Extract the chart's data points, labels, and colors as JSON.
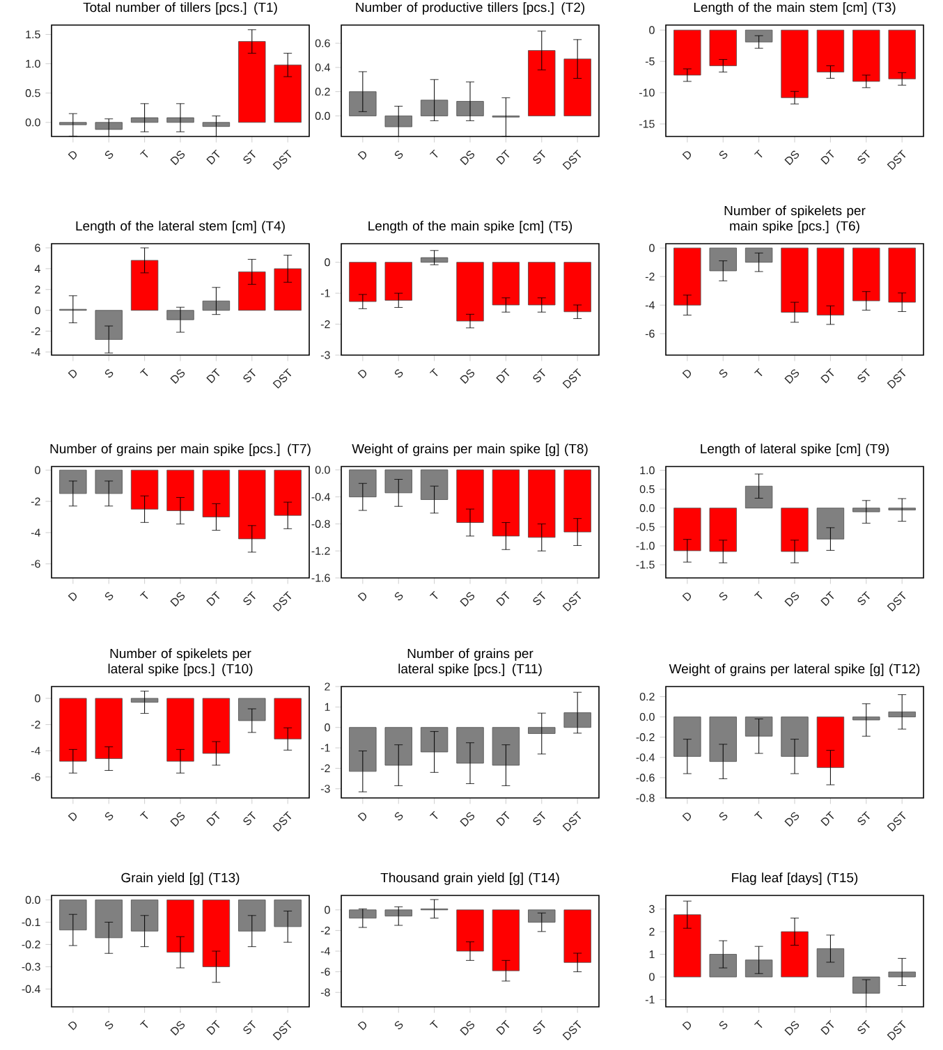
{
  "chart_data": [
    {
      "type": "bar",
      "title": "Total number of tillers [pcs.] (T1)",
      "categories": [
        "D",
        "S",
        "T",
        "DS",
        "DT",
        "ST",
        "DST"
      ],
      "values": [
        -0.04,
        -0.12,
        0.08,
        0.08,
        -0.07,
        1.38,
        0.98
      ],
      "errors": [
        0.19,
        0.18,
        0.24,
        0.24,
        0.18,
        0.2,
        0.2
      ],
      "colors": [
        "#808080",
        "#808080",
        "#808080",
        "#808080",
        "#808080",
        "#ff0000",
        "#ff0000"
      ],
      "ylim": [
        -0.24,
        1.66
      ],
      "yticks": [
        {
          "value": 0,
          "label": "0.0"
        },
        0.5,
        {
          "value": 1,
          "label": "1.0"
        },
        1.5
      ]
    },
    {
      "type": "bar",
      "title": "Number of productive tillers [pcs.] (T2)",
      "categories": [
        "D",
        "S",
        "T",
        "DS",
        "DT",
        "ST",
        "DST"
      ],
      "values": [
        0.2,
        -0.09,
        0.13,
        0.12,
        -0.01,
        0.54,
        0.47
      ],
      "errors": [
        0.165,
        0.17,
        0.17,
        0.16,
        0.16,
        0.16,
        0.16
      ],
      "colors": [
        "#808080",
        "#808080",
        "#808080",
        "#808080",
        "#808080",
        "#ff0000",
        "#ff0000"
      ],
      "ylim": [
        -0.17,
        0.75
      ],
      "yticks": [
        {
          "value": 0,
          "label": "0.0"
        },
        0.2,
        0.4,
        0.6
      ]
    },
    {
      "type": "bar",
      "title": "Length of the main stem [cm] (T3)",
      "categories": [
        "D",
        "S",
        "T",
        "DS",
        "DT",
        "ST",
        "DST"
      ],
      "values": [
        -7.2,
        -5.7,
        -1.9,
        -10.8,
        -6.7,
        -8.2,
        -7.8
      ],
      "errors": [
        1.0,
        1.0,
        1.0,
        1.0,
        1.0,
        1.0,
        1.0
      ],
      "colors": [
        "#ff0000",
        "#ff0000",
        "#808080",
        "#ff0000",
        "#ff0000",
        "#ff0000",
        "#ff0000"
      ],
      "ylim": [
        -17,
        0.8
      ],
      "yticks": [
        -15,
        -10,
        -5,
        0
      ]
    },
    {
      "type": "bar",
      "title": "Length of the lateral stem [cm] (T4)",
      "categories": [
        "D",
        "S",
        "T",
        "DS",
        "DT",
        "ST",
        "DST"
      ],
      "values": [
        0.1,
        -2.8,
        4.8,
        -0.9,
        0.9,
        3.7,
        4.0
      ],
      "errors": [
        1.3,
        1.3,
        1.2,
        1.2,
        1.3,
        1.2,
        1.3
      ],
      "colors": [
        "#808080",
        "#808080",
        "#ff0000",
        "#808080",
        "#808080",
        "#ff0000",
        "#ff0000"
      ],
      "ylim": [
        -4.3,
        6.4
      ],
      "yticks": [
        -4,
        -2,
        0,
        2,
        4,
        6
      ]
    },
    {
      "type": "bar",
      "title": "Length of the main spike [cm] (T5)",
      "categories": [
        "D",
        "S",
        "T",
        "DS",
        "DT",
        "ST",
        "DST"
      ],
      "values": [
        -1.27,
        -1.23,
        0.15,
        -1.9,
        -1.38,
        -1.38,
        -1.6
      ],
      "errors": [
        0.23,
        0.23,
        0.23,
        0.22,
        0.23,
        0.23,
        0.22
      ],
      "colors": [
        "#ff0000",
        "#ff0000",
        "#808080",
        "#ff0000",
        "#ff0000",
        "#ff0000",
        "#ff0000"
      ],
      "ylim": [
        -3,
        0.6
      ],
      "yticks": [
        -3,
        -2,
        -1,
        0
      ]
    },
    {
      "type": "bar",
      "title": "Number of spikelets per main spike [pcs.] (T6)",
      "categories": [
        "D",
        "S",
        "T",
        "DS",
        "DT",
        "ST",
        "DST"
      ],
      "values": [
        -4.0,
        -1.6,
        -1.0,
        -4.5,
        -4.7,
        -3.7,
        -3.8
      ],
      "errors": [
        0.7,
        0.7,
        0.65,
        0.7,
        0.65,
        0.65,
        0.65
      ],
      "colors": [
        "#ff0000",
        "#808080",
        "#808080",
        "#ff0000",
        "#ff0000",
        "#ff0000",
        "#ff0000"
      ],
      "ylim": [
        -7.5,
        0.3
      ],
      "yticks": [
        -6,
        -4,
        -2,
        0
      ]
    },
    {
      "type": "bar",
      "title": "Number of grains per main spike [pcs.] (T7)",
      "categories": [
        "D",
        "S",
        "T",
        "DS",
        "DT",
        "ST",
        "DST"
      ],
      "values": [
        -1.5,
        -1.5,
        -2.5,
        -2.6,
        -3.0,
        -4.4,
        -2.9
      ],
      "errors": [
        0.8,
        0.8,
        0.85,
        0.85,
        0.85,
        0.85,
        0.85
      ],
      "colors": [
        "#808080",
        "#808080",
        "#ff0000",
        "#ff0000",
        "#ff0000",
        "#ff0000",
        "#ff0000"
      ],
      "ylim": [
        -6.9,
        0.23
      ],
      "yticks": [
        -6,
        -4,
        -2,
        0
      ]
    },
    {
      "type": "bar",
      "title": "Weight of grains per main spike [g] (T8)",
      "categories": [
        "D",
        "S",
        "T",
        "DS",
        "DT",
        "ST",
        "DST"
      ],
      "values": [
        -0.4,
        -0.34,
        -0.44,
        -0.78,
        -0.98,
        -1.0,
        -0.92
      ],
      "errors": [
        0.2,
        0.2,
        0.2,
        0.2,
        0.2,
        0.2,
        0.2
      ],
      "colors": [
        "#808080",
        "#808080",
        "#808080",
        "#ff0000",
        "#ff0000",
        "#ff0000",
        "#ff0000"
      ],
      "ylim": [
        -1.6,
        0.05
      ],
      "yticks": [
        -1.6,
        -1.2,
        -0.8,
        -0.4,
        {
          "value": 0,
          "label": "0.0"
        }
      ]
    },
    {
      "type": "bar",
      "title": "Length of lateral spike [cm] (T9)",
      "categories": [
        "D",
        "S",
        "T",
        "DS",
        "DT",
        "ST",
        "DST"
      ],
      "values": [
        -1.13,
        -1.15,
        0.58,
        -1.15,
        -0.82,
        -0.1,
        -0.05
      ],
      "errors": [
        0.3,
        0.3,
        0.32,
        0.3,
        0.3,
        0.3,
        0.3
      ],
      "colors": [
        "#ff0000",
        "#ff0000",
        "#808080",
        "#ff0000",
        "#808080",
        "#808080",
        "#808080"
      ],
      "ylim": [
        -1.85,
        1.1
      ],
      "yticks": [
        -1.5,
        {
          "value": -1,
          "label": "-1.0"
        },
        -0.5,
        {
          "value": 0,
          "label": "0.0"
        },
        0.5,
        {
          "value": 1,
          "label": "1.0"
        }
      ]
    },
    {
      "type": "bar",
      "title": "Number of spikelets per lateral spike [pcs.] (T10)",
      "categories": [
        "D",
        "S",
        "T",
        "DS",
        "DT",
        "ST",
        "DST"
      ],
      "values": [
        -4.8,
        -4.6,
        -0.3,
        -4.8,
        -4.2,
        -1.7,
        -3.1
      ],
      "errors": [
        0.9,
        0.9,
        0.85,
        0.9,
        0.9,
        0.9,
        0.85
      ],
      "colors": [
        "#ff0000",
        "#ff0000",
        "#808080",
        "#ff0000",
        "#ff0000",
        "#808080",
        "#ff0000"
      ],
      "ylim": [
        -7.6,
        0.9
      ],
      "yticks": [
        -6,
        -4,
        -2,
        0
      ]
    },
    {
      "type": "bar",
      "title": "Number of grains per lateral spike [pcs.] (T11)",
      "categories": [
        "D",
        "S",
        "T",
        "DS",
        "DT",
        "ST",
        "DST"
      ],
      "values": [
        -2.15,
        -1.85,
        -1.2,
        -1.75,
        -1.85,
        -0.3,
        0.72
      ],
      "errors": [
        1.0,
        1.0,
        1.0,
        1.0,
        1.0,
        1.0,
        1.0
      ],
      "colors": [
        "#808080",
        "#808080",
        "#808080",
        "#808080",
        "#808080",
        "#808080",
        "#808080"
      ],
      "ylim": [
        -3.45,
        2.0
      ],
      "yticks": [
        -3,
        -2,
        -1,
        0,
        1,
        2
      ]
    },
    {
      "type": "bar",
      "title": "Weight of grains per lateral spike [g] (T12)",
      "categories": [
        "D",
        "S",
        "T",
        "DS",
        "DT",
        "ST",
        "DST"
      ],
      "values": [
        -0.39,
        -0.44,
        -0.19,
        -0.39,
        -0.5,
        -0.03,
        0.05
      ],
      "errors": [
        0.17,
        0.17,
        0.17,
        0.17,
        0.17,
        0.16,
        0.17
      ],
      "colors": [
        "#808080",
        "#808080",
        "#808080",
        "#808080",
        "#ff0000",
        "#808080",
        "#808080"
      ],
      "ylim": [
        -0.8,
        0.3
      ],
      "yticks": [
        -0.8,
        -0.6,
        -0.4,
        -0.2,
        {
          "value": 0,
          "label": "0.0"
        },
        0.2
      ]
    },
    {
      "type": "bar",
      "title": "Grain yield [g] (T13)",
      "categories": [
        "D",
        "S",
        "T",
        "DS",
        "DT",
        "ST",
        "DST"
      ],
      "values": [
        -0.135,
        -0.17,
        -0.14,
        -0.235,
        -0.3,
        -0.14,
        -0.12
      ],
      "errors": [
        0.07,
        0.07,
        0.07,
        0.07,
        0.07,
        0.07,
        0.07
      ],
      "colors": [
        "#808080",
        "#808080",
        "#808080",
        "#ff0000",
        "#ff0000",
        "#808080",
        "#808080"
      ],
      "ylim": [
        -0.48,
        0.02
      ],
      "yticks": [
        -0.4,
        -0.3,
        -0.2,
        -0.1,
        {
          "value": 0,
          "label": "0.0"
        }
      ]
    },
    {
      "type": "bar",
      "title": "Thousand grain yield [g] (T14)",
      "categories": [
        "D",
        "S",
        "T",
        "DS",
        "DT",
        "ST",
        "DST"
      ],
      "values": [
        -0.8,
        -0.6,
        0.1,
        -4.0,
        -5.9,
        -1.2,
        -5.1
      ],
      "errors": [
        0.9,
        0.9,
        0.9,
        0.9,
        1.0,
        0.9,
        0.9
      ],
      "colors": [
        "#808080",
        "#808080",
        "#808080",
        "#ff0000",
        "#ff0000",
        "#808080",
        "#ff0000"
      ],
      "ylim": [
        -9.4,
        1.4
      ],
      "yticks": [
        -8,
        -6,
        -4,
        -2,
        0
      ]
    },
    {
      "type": "bar",
      "title": "Flag leaf [days] (T15)",
      "categories": [
        "D",
        "S",
        "T",
        "DS",
        "DT",
        "ST",
        "DST"
      ],
      "values": [
        2.75,
        1.0,
        0.75,
        2.0,
        1.25,
        -0.72,
        0.22
      ],
      "errors": [
        0.6,
        0.6,
        0.6,
        0.6,
        0.6,
        0.6,
        0.6
      ],
      "colors": [
        "#ff0000",
        "#808080",
        "#808080",
        "#ff0000",
        "#808080",
        "#808080",
        "#808080"
      ],
      "ylim": [
        -1.32,
        3.6
      ],
      "yticks": [
        -1,
        0,
        1,
        2,
        3
      ]
    }
  ]
}
